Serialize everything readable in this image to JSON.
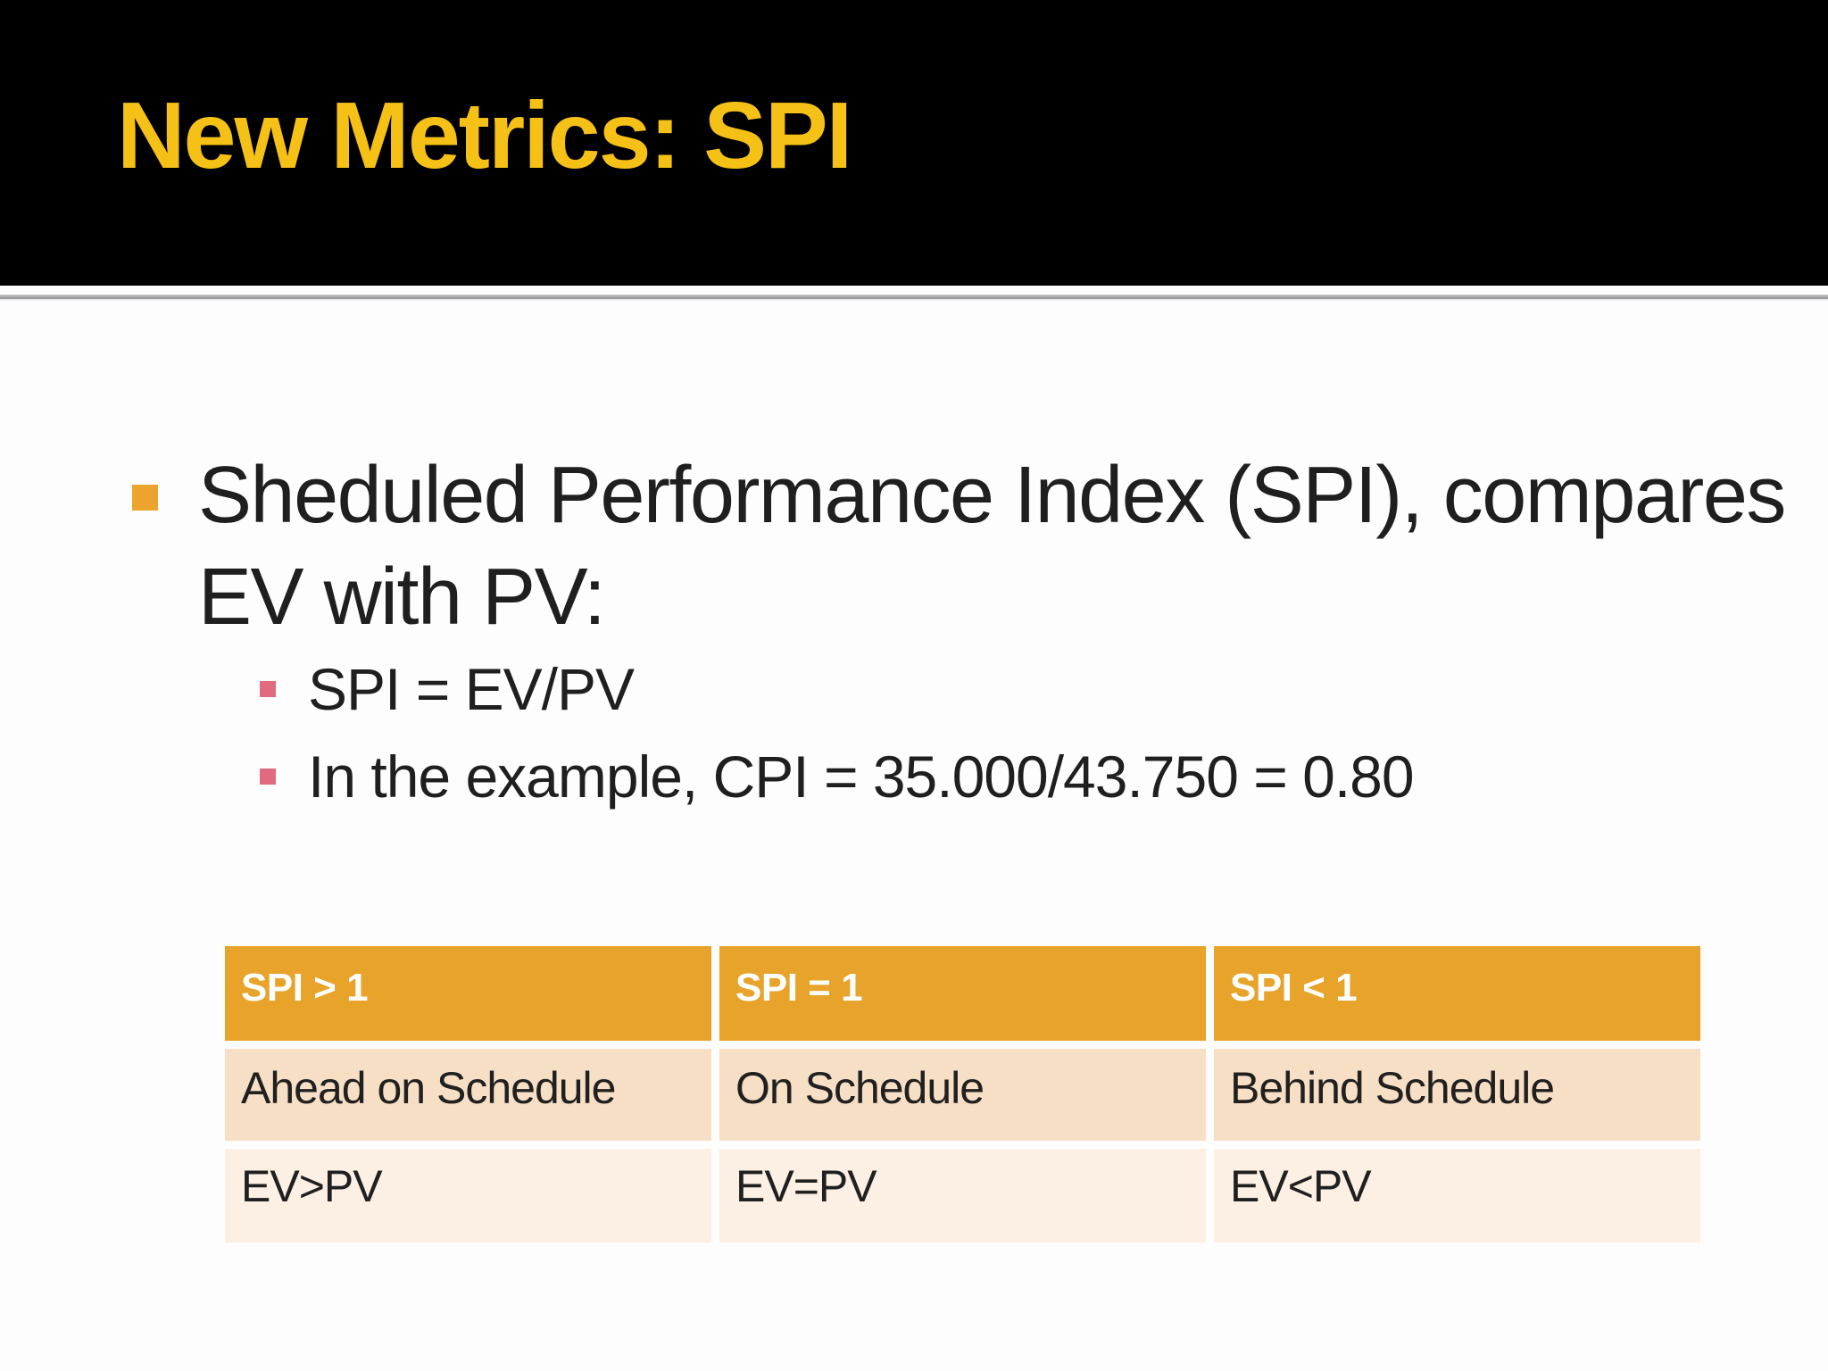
{
  "slide": {
    "title": "New Metrics: SPI",
    "bullets": {
      "main": {
        "line1": "Sheduled Performance Index (SPI), compares",
        "line2": "EV with PV:"
      },
      "sub": [
        {
          "text": "SPI = EV/PV"
        },
        {
          "text": "In the example, CPI = 35.000/43.750 = 0.80"
        }
      ]
    },
    "table": {
      "header": [
        "SPI > 1",
        "SPI = 1",
        "SPI < 1"
      ],
      "rows": [
        [
          "Ahead on Schedule",
          "On Schedule",
          "Behind Schedule"
        ],
        [
          "EV>PV",
          "EV=PV",
          "EV<PV"
        ]
      ]
    },
    "colors": {
      "title_text": "#F5C116",
      "title_band_bg": "#000000",
      "bullet_level1": "#EDA42E",
      "bullet_level2": "#E06A7E",
      "table_header_bg": "#E8A32A",
      "table_header_text": "#FFFFFF",
      "table_row_band1_bg": "#F7DFC5",
      "table_row_band2_bg": "#FCF0E4",
      "body_text": "#1F1F1F"
    }
  }
}
